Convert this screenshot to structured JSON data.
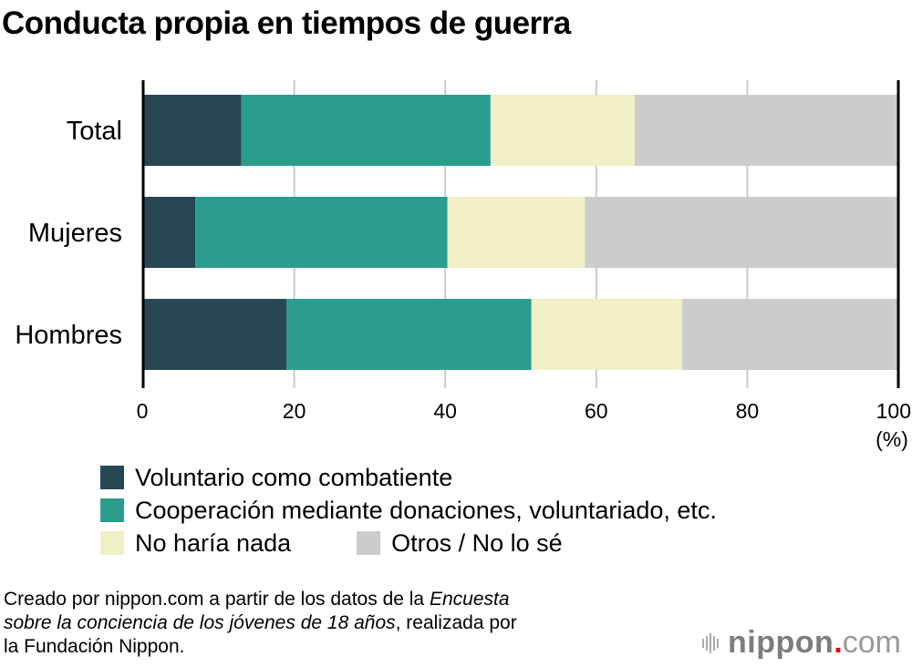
{
  "chart_data": {
    "type": "bar",
    "orientation": "horizontal",
    "stacked": true,
    "title": "Conducta propia en tiempos de guerra",
    "categories": [
      "Total",
      "Mujeres",
      "Hombres"
    ],
    "series": [
      {
        "name": "Voluntario como combatiente",
        "color": "#274754",
        "values": [
          13.0,
          6.9,
          19.0
        ]
      },
      {
        "name": "Cooperación mediante donaciones, voluntariado, etc.",
        "color": "#2a9d8e",
        "values": [
          33.0,
          33.4,
          32.4
        ]
      },
      {
        "name": "No haría nada",
        "color": "#f1efc5",
        "values": [
          19.1,
          18.2,
          20.0
        ]
      },
      {
        "name": "Otros / No lo sé",
        "color": "#cccccc",
        "values": [
          34.9,
          41.5,
          28.6
        ]
      }
    ],
    "xlabel": "(%)",
    "ylabel": "",
    "xlim": [
      0,
      100
    ],
    "xticks": [
      "0",
      "20",
      "40",
      "60",
      "80",
      "100"
    ],
    "grid": true,
    "legend_position": "bottom"
  },
  "legend": {
    "rows": [
      [
        0
      ],
      [
        1
      ],
      [
        2,
        3
      ]
    ]
  },
  "source": {
    "part1": "Creado por nippon.com a partir de los datos de la ",
    "italic1": "Encuesta",
    "italic2": "sobre la conciencia de los jóvenes de 18 años",
    "part2": ", realizada por",
    "part3": "la Fundación Nippon."
  },
  "logo": {
    "brand": "nippon",
    "dot": ".",
    "tld": "com"
  }
}
